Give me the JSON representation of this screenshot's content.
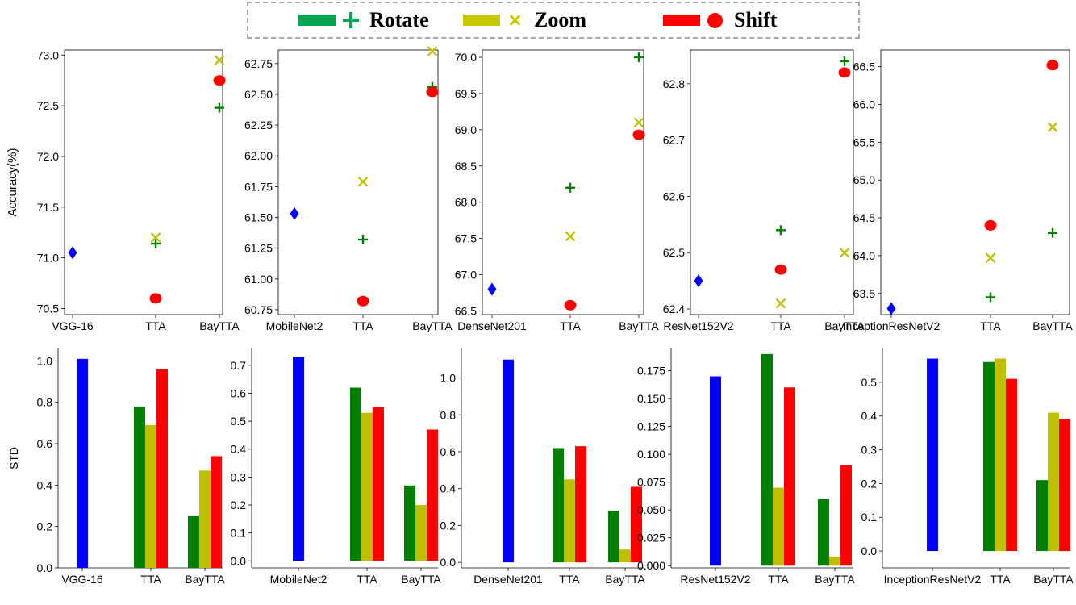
{
  "legend": {
    "items": [
      {
        "label": "Rotate",
        "color": "#00a651",
        "marker": "plus"
      },
      {
        "label": "Zoom",
        "color": "#c8c800",
        "marker": "x"
      },
      {
        "label": "Shift",
        "color": "#ff0000",
        "marker": "circle"
      }
    ]
  },
  "colors": {
    "base": "#0000ff",
    "rotate": "#008000",
    "zoom": "#bfbf00",
    "shift": "#ff0000"
  },
  "chart_data": [
    {
      "type": "scatter",
      "row": "accuracy",
      "ylabel": "Accuracy(%)",
      "categories": [
        "VGG-16",
        "TTA",
        "BayTTA"
      ],
      "ylim": [
        70.44,
        73.05
      ],
      "yticks": [
        "70.5",
        "71.0",
        "71.5",
        "72.0",
        "72.5",
        "73.0"
      ],
      "base": 71.05,
      "series": [
        {
          "name": "Rotate",
          "values": [
            null,
            71.14,
            72.48
          ]
        },
        {
          "name": "Zoom",
          "values": [
            null,
            71.2,
            72.95
          ]
        },
        {
          "name": "Shift",
          "values": [
            null,
            70.6,
            72.75
          ]
        }
      ]
    },
    {
      "type": "scatter",
      "row": "accuracy",
      "ylabel": "",
      "categories": [
        "MobileNet2",
        "TTA",
        "BayTTA"
      ],
      "ylim": [
        60.71,
        62.86
      ],
      "yticks": [
        "60.75",
        "61.00",
        "61.25",
        "61.50",
        "61.75",
        "62.00",
        "62.25",
        "62.50",
        "62.75"
      ],
      "base": 61.53,
      "series": [
        {
          "name": "Rotate",
          "values": [
            null,
            61.32,
            62.56
          ]
        },
        {
          "name": "Zoom",
          "values": [
            null,
            61.79,
            62.85
          ]
        },
        {
          "name": "Shift",
          "values": [
            null,
            60.82,
            62.52
          ]
        }
      ]
    },
    {
      "type": "scatter",
      "row": "accuracy",
      "ylabel": "",
      "categories": [
        "DenseNet201",
        "TTA",
        "BayTTA"
      ],
      "ylim": [
        66.45,
        70.1
      ],
      "yticks": [
        "66.5",
        "67.0",
        "67.5",
        "68.0",
        "68.5",
        "69.0",
        "69.5",
        "70.0"
      ],
      "base": 66.8,
      "series": [
        {
          "name": "Rotate",
          "values": [
            null,
            68.2,
            70.0
          ]
        },
        {
          "name": "Zoom",
          "values": [
            null,
            67.53,
            69.1
          ]
        },
        {
          "name": "Shift",
          "values": [
            null,
            66.58,
            68.93
          ]
        }
      ]
    },
    {
      "type": "scatter",
      "row": "accuracy",
      "ylabel": "",
      "categories": [
        "ResNet152V2",
        "TTA",
        "BayTTA"
      ],
      "ylim": [
        62.39,
        62.86
      ],
      "yticks": [
        "62.4",
        "62.5",
        "62.6",
        "62.7",
        "62.8"
      ],
      "base": 62.45,
      "series": [
        {
          "name": "Rotate",
          "values": [
            null,
            62.54,
            62.84
          ]
        },
        {
          "name": "Zoom",
          "values": [
            null,
            62.41,
            62.5
          ]
        },
        {
          "name": "Shift",
          "values": [
            null,
            62.47,
            62.82
          ]
        }
      ]
    },
    {
      "type": "scatter",
      "row": "accuracy",
      "ylabel": "",
      "categories": [
        "InceptionResNetV2",
        "TTA",
        "BayTTA"
      ],
      "ylim": [
        63.22,
        66.72
      ],
      "yticks": [
        "63.5",
        "64.0",
        "64.5",
        "65.0",
        "65.5",
        "66.0",
        "66.5"
      ],
      "base": 63.3,
      "series": [
        {
          "name": "Rotate",
          "values": [
            null,
            63.45,
            64.3
          ]
        },
        {
          "name": "Zoom",
          "values": [
            null,
            63.97,
            65.7
          ]
        },
        {
          "name": "Shift",
          "values": [
            null,
            64.4,
            66.52
          ]
        }
      ]
    },
    {
      "type": "bar",
      "row": "std",
      "ylabel": "STD",
      "categories": [
        "VGG-16",
        "TTA",
        "BayTTA"
      ],
      "ylim": [
        0,
        1.06
      ],
      "yticks": [
        "0.0",
        "0.2",
        "0.4",
        "0.6",
        "0.8",
        "1.0"
      ],
      "base": 1.01,
      "series": [
        {
          "name": "Rotate",
          "values": [
            null,
            0.78,
            0.25
          ]
        },
        {
          "name": "Zoom",
          "values": [
            null,
            0.69,
            0.47
          ]
        },
        {
          "name": "Shift",
          "values": [
            null,
            0.96,
            0.54
          ]
        }
      ]
    },
    {
      "type": "bar",
      "row": "std",
      "ylabel": "",
      "categories": [
        "MobileNet2",
        "TTA",
        "BayTTA"
      ],
      "ylim": [
        -0.025,
        0.76
      ],
      "yticks": [
        "0.0",
        "0.1",
        "0.2",
        "0.3",
        "0.4",
        "0.5",
        "0.6",
        "0.7"
      ],
      "base": 0.73,
      "series": [
        {
          "name": "Rotate",
          "values": [
            null,
            0.62,
            0.27
          ]
        },
        {
          "name": "Zoom",
          "values": [
            null,
            0.53,
            0.2
          ]
        },
        {
          "name": "Shift",
          "values": [
            null,
            0.55,
            0.47
          ]
        }
      ]
    },
    {
      "type": "bar",
      "row": "std",
      "ylabel": "",
      "categories": [
        "DenseNet201",
        "TTA",
        "BayTTA"
      ],
      "ylim": [
        -0.03,
        1.16
      ],
      "yticks": [
        "0.0",
        "0.2",
        "0.4",
        "0.6",
        "0.8",
        "1.0"
      ],
      "base": 1.1,
      "series": [
        {
          "name": "Rotate",
          "values": [
            null,
            0.62,
            0.28
          ]
        },
        {
          "name": "Zoom",
          "values": [
            null,
            0.45,
            0.07
          ]
        },
        {
          "name": "Shift",
          "values": [
            null,
            0.63,
            0.41
          ]
        }
      ]
    },
    {
      "type": "bar",
      "row": "std",
      "ylabel": "",
      "categories": [
        "ResNet152V2",
        "TTA",
        "BayTTA"
      ],
      "ylim": [
        -0.002,
        0.195
      ],
      "yticks": [
        "0.000",
        "0.025",
        "0.050",
        "0.075",
        "0.100",
        "0.125",
        "0.150",
        "0.175"
      ],
      "base": 0.17,
      "series": [
        {
          "name": "Rotate",
          "values": [
            null,
            0.19,
            0.06
          ]
        },
        {
          "name": "Zoom",
          "values": [
            null,
            0.07,
            0.008
          ]
        },
        {
          "name": "Shift",
          "values": [
            null,
            0.16,
            0.09
          ]
        }
      ]
    },
    {
      "type": "bar",
      "row": "std",
      "ylabel": "",
      "categories": [
        "InceptionResNetV2",
        "TTA",
        "BayTTA"
      ],
      "ylim": [
        -0.05,
        0.6
      ],
      "yticks": [
        "0.0",
        "0.1",
        "0.2",
        "0.3",
        "0.4",
        "0.5"
      ],
      "base": 0.57,
      "series": [
        {
          "name": "Rotate",
          "values": [
            null,
            0.56,
            0.21
          ]
        },
        {
          "name": "Zoom",
          "values": [
            null,
            0.57,
            0.41
          ]
        },
        {
          "name": "Shift",
          "values": [
            null,
            0.51,
            0.39
          ]
        }
      ]
    }
  ]
}
